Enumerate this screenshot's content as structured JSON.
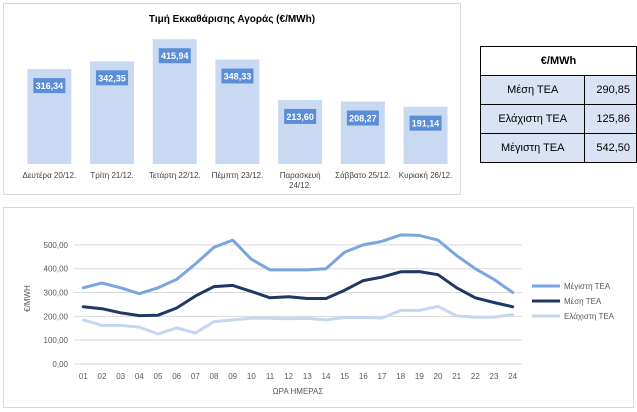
{
  "chart_data": [
    {
      "type": "bar",
      "title": "Τιμή Εκκαθάρισης Αγοράς (€/MWh)",
      "categories": [
        "Δευτέρα 20/12.",
        "Τρίτη 21/12.",
        "Τετάρτη 22/12.",
        "Πέμπτη 23/12.",
        "Παρασκευή 24/12.",
        "Σάββατο 25/12.",
        "Κυριακή 26/12."
      ],
      "values": [
        316.34,
        342.35,
        415.94,
        348.33,
        213.6,
        208.27,
        191.14
      ],
      "value_labels": [
        "316,34",
        "342,35",
        "415,94",
        "348,33",
        "213,60",
        "208,27",
        "191,14"
      ],
      "ylim": [
        0,
        450
      ],
      "grid": false,
      "colors": {
        "bar": "#c9d9f2",
        "label_box": "#5b8ed6",
        "label_text": "#ffffff"
      }
    },
    {
      "type": "line",
      "xlabel": "ΩΡΑ ΗΜΕΡΑΣ",
      "ylabel": "€/MWH",
      "x": [
        "01",
        "02",
        "03",
        "04",
        "05",
        "06",
        "07",
        "08",
        "09",
        "10",
        "11",
        "12",
        "13",
        "14",
        "15",
        "16",
        "17",
        "18",
        "19",
        "20",
        "21",
        "22",
        "23",
        "24"
      ],
      "yticks": [
        "0,00",
        "100,00",
        "200,00",
        "300,00",
        "400,00",
        "500,00"
      ],
      "ylim": [
        0,
        550
      ],
      "grid": true,
      "legend_position": "right",
      "series": [
        {
          "name": "Μέγιστη ΤΕΑ",
          "color": "#7aa5de",
          "values": [
            320,
            340,
            320,
            295,
            320,
            355,
            420,
            490,
            520,
            440,
            395,
            395,
            395,
            400,
            470,
            500,
            515,
            542,
            540,
            520,
            455,
            400,
            355,
            300
          ]
        },
        {
          "name": "Μέση ΤΕΑ",
          "color": "#1f3864",
          "values": [
            240,
            232,
            215,
            203,
            205,
            235,
            285,
            325,
            330,
            305,
            278,
            282,
            275,
            275,
            310,
            350,
            365,
            387,
            388,
            375,
            320,
            278,
            258,
            240
          ]
        },
        {
          "name": "Ελάχιστη ΤΕΑ",
          "color": "#c5d6f0",
          "values": [
            185,
            162,
            162,
            155,
            126,
            152,
            130,
            178,
            185,
            192,
            192,
            190,
            192,
            185,
            195,
            195,
            193,
            225,
            225,
            242,
            202,
            196,
            197,
            207
          ]
        }
      ]
    }
  ],
  "stats_table": {
    "header": "€/MWh",
    "rows": [
      {
        "label": "Μέση ΤΕΑ",
        "value": "290,85"
      },
      {
        "label": "Ελάχιστη ΤΕΑ",
        "value": "125,86"
      },
      {
        "label": "Μέγιστη ΤΕΑ",
        "value": "542,50"
      }
    ]
  }
}
